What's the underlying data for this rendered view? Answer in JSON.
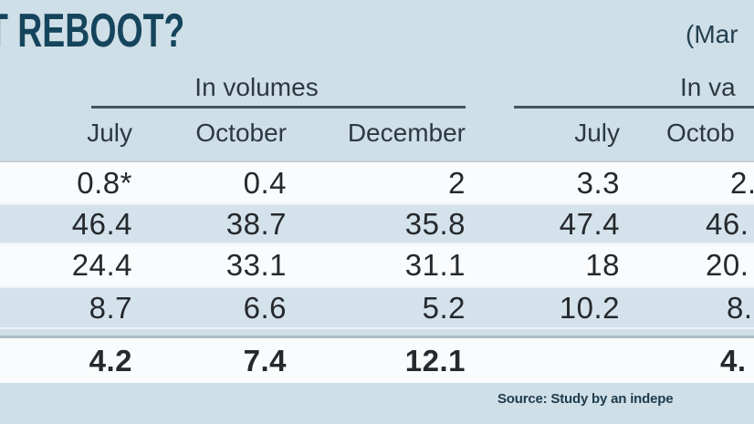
{
  "title": "T REBOOT?",
  "corner_note": "(Mar",
  "table": {
    "group_volumes_label": "In volumes",
    "group_value_label": "In va",
    "vol_columns": [
      "July",
      "October",
      "December"
    ],
    "val_columns": [
      "July",
      "Octob"
    ],
    "rows": [
      {
        "vol": [
          "0.8*",
          "0.4",
          "2"
        ],
        "val": [
          "3.3",
          "2."
        ]
      },
      {
        "vol": [
          "46.4",
          "38.7",
          "35.8"
        ],
        "val": [
          "47.4",
          "46."
        ]
      },
      {
        "vol": [
          "24.4",
          "33.1",
          "31.1"
        ],
        "val": [
          "18",
          "20."
        ]
      },
      {
        "vol": [
          "8.7",
          "6.6",
          "5.2"
        ],
        "val": [
          "10.2",
          "8."
        ]
      },
      {
        "vol": [
          "4.2",
          "7.4",
          "12.1"
        ],
        "val": [
          "",
          "4."
        ]
      }
    ]
  },
  "source": "Source: Study by an indepe",
  "colors": {
    "background": "#cfdfe8",
    "title": "#15455c",
    "stripe_white": "#f9fbfc",
    "stripe_blue": "#d4e2eb",
    "header_rule": "#42565f",
    "separator": "#aebcc5",
    "number_text": "#25292c",
    "source_text": "#1e3a4b"
  },
  "chart_data": {
    "type": "table",
    "title": "T REBOOT?",
    "corner_note": "(Mar",
    "column_groups": [
      {
        "label": "In volumes",
        "columns": [
          "July",
          "October",
          "December"
        ]
      },
      {
        "label": "In va",
        "columns": [
          "July",
          "Octob"
        ]
      }
    ],
    "rows": [
      {
        "in_volumes": {
          "July": "0.8*",
          "October": "0.4",
          "December": "2"
        },
        "in_value": {
          "July": "3.3",
          "October": "2. (clipped)"
        }
      },
      {
        "in_volumes": {
          "July": "46.4",
          "October": "38.7",
          "December": "35.8"
        },
        "in_value": {
          "July": "47.4",
          "October": "46. (clipped)"
        }
      },
      {
        "in_volumes": {
          "July": "24.4",
          "October": "33.1",
          "December": "31.1"
        },
        "in_value": {
          "July": "18",
          "October": "20. (clipped)"
        }
      },
      {
        "in_volumes": {
          "July": "8.7",
          "October": "6.6",
          "December": "5.2"
        },
        "in_value": {
          "July": "10.2",
          "October": "8. (clipped)"
        }
      },
      {
        "in_volumes": {
          "July": "4.2",
          "October": "7.4",
          "December": "12.1"
        },
        "in_value": {
          "July": "",
          "October": "4. (clipped)"
        },
        "emphasis": "bold"
      }
    ],
    "notes": [
      "Row labels cropped out of frame on the left",
      "* marker on first July value"
    ],
    "source": "Source: Study by an indepe"
  }
}
